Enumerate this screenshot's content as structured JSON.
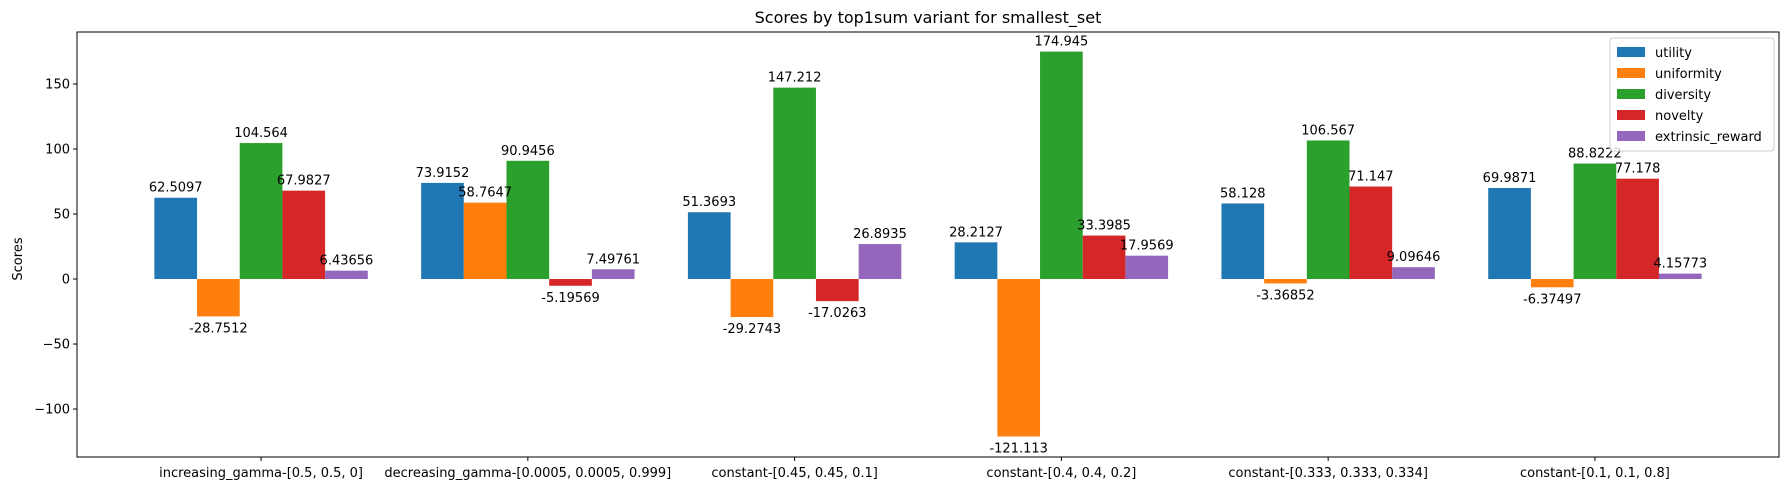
{
  "chart_data": {
    "type": "bar",
    "title": "Scores by top1sum variant for smallest_set",
    "xlabel": "",
    "ylabel": "Scores",
    "categories": [
      "increasing_gamma-[0.5, 0.5, 0]",
      "decreasing_gamma-[0.0005, 0.0005, 0.999]",
      "constant-[0.45, 0.45, 0.1]",
      "constant-[0.4, 0.4, 0.2]",
      "constant-[0.333, 0.333, 0.334]",
      "constant-[0.1, 0.1, 0.8]"
    ],
    "series": [
      {
        "name": "utility",
        "color": "#1f77b4",
        "values": [
          62.5097,
          73.9152,
          51.3693,
          28.2127,
          58.128,
          69.9871
        ],
        "labels": [
          "62.5097",
          "73.9152",
          "51.3693",
          "28.2127",
          "58.128",
          "69.9871"
        ]
      },
      {
        "name": "uniformity",
        "color": "#ff7f0e",
        "values": [
          -28.7512,
          58.7647,
          -29.2743,
          -121.113,
          -3.36852,
          -6.37497
        ],
        "labels": [
          "-28.7512",
          "58.7647",
          "-29.2743",
          "-121.113",
          "-3.36852",
          "-6.37497"
        ]
      },
      {
        "name": "diversity",
        "color": "#2ca02c",
        "values": [
          104.564,
          90.9456,
          147.212,
          174.945,
          106.567,
          88.8222
        ],
        "labels": [
          "104.564",
          "90.9456",
          "147.212",
          "174.945",
          "106.567",
          "88.8222"
        ]
      },
      {
        "name": "novelty",
        "color": "#d62728",
        "values": [
          67.9827,
          -5.19569,
          -17.0263,
          33.3985,
          71.147,
          77.178
        ],
        "labels": [
          "67.9827",
          "-5.19569",
          "-17.0263",
          "33.3985",
          "71.147",
          "77.178"
        ]
      },
      {
        "name": "extrinsic_reward",
        "color": "#9467bd",
        "values": [
          6.43656,
          7.49761,
          26.8935,
          17.9569,
          9.09646,
          4.15773
        ],
        "labels": [
          "6.43656",
          "7.49761",
          "26.8935",
          "17.9569",
          "9.09646",
          "4.15773"
        ]
      }
    ],
    "ylim": [
      -136.9,
      190.0
    ],
    "yticks": [
      -100,
      -50,
      0,
      50,
      100,
      150
    ],
    "ytick_labels": [
      "−100",
      "−50",
      "0",
      "50",
      "100",
      "150"
    ],
    "grid": false,
    "legend_position": "top-right"
  }
}
